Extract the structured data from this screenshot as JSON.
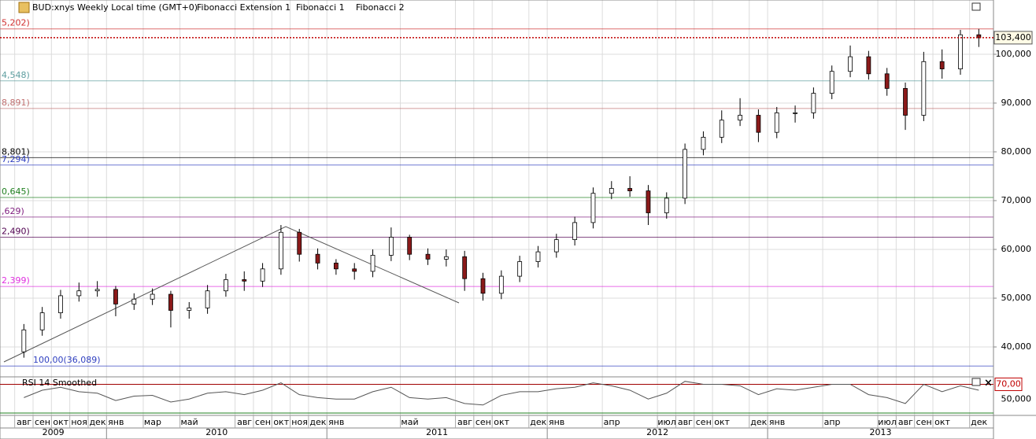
{
  "chart_data": {
    "type": "candlestick",
    "title": "BUD:xnys Weekly Local time (GMT+0)",
    "toolbar": [
      "Fibonacci Extension 1",
      "Fibonacci 1",
      "Fibonacci 2"
    ],
    "x": [
      1.5,
      2.5,
      3.5,
      4.5,
      5.5,
      6.5,
      7.5,
      8.5,
      9.5,
      10.5,
      11.5,
      12.5,
      13.5,
      14.5,
      15.5,
      16.5,
      17.5,
      18.5,
      19.5,
      20.5,
      21.5,
      22.5,
      23.5,
      24.5,
      25.5,
      26.5,
      27.5,
      28.5,
      29.5,
      30.5,
      31.5,
      32.5,
      33.5,
      34.5,
      35.5,
      36.5,
      37.5,
      38.5,
      39.5,
      40.5,
      41.5,
      42.5,
      43.5,
      44.5,
      45.5,
      46.5,
      47.5,
      48.5,
      49.5,
      50.5,
      51.5,
      52.5,
      53.5
    ],
    "open": [
      39000,
      43500,
      47000,
      50500,
      51500,
      51800,
      48800,
      49800,
      50800,
      47500,
      48000,
      51500,
      53800,
      53500,
      56000,
      63500,
      59000,
      57200,
      56000,
      55500,
      58800,
      62500,
      59000,
      58000,
      58500,
      54000,
      51000,
      54500,
      57500,
      59500,
      62000,
      65500,
      71500,
      72500,
      72000,
      67500,
      70500,
      80500,
      83000,
      86500,
      87500,
      84000,
      88000,
      88000,
      92000,
      96500,
      99500,
      96000,
      93000,
      87500,
      98500,
      97000,
      104000
    ],
    "high": [
      44700,
      48200,
      51700,
      53200,
      53500,
      52500,
      51000,
      52000,
      51500,
      49200,
      52700,
      55000,
      55500,
      57200,
      65000,
      64200,
      60200,
      58000,
      57200,
      60000,
      64500,
      63000,
      60200,
      60000,
      59700,
      55200,
      55700,
      58700,
      60700,
      63200,
      66700,
      72700,
      74000,
      75000,
      73200,
      71700,
      81700,
      84200,
      88500,
      91000,
      88700,
      89200,
      89500,
      93200,
      97700,
      101800,
      100700,
      97200,
      94200,
      100500,
      101000,
      105000,
      105200
    ],
    "low": [
      37800,
      42300,
      45800,
      49300,
      50300,
      46300,
      47600,
      48600,
      44000,
      45800,
      46800,
      50300,
      51500,
      52300,
      54800,
      57500,
      55900,
      54800,
      53800,
      54300,
      57600,
      57800,
      56800,
      56500,
      51500,
      49500,
      49800,
      53300,
      56300,
      58300,
      60800,
      64300,
      70300,
      70800,
      65000,
      66300,
      69300,
      79300,
      81800,
      85300,
      82000,
      82800,
      86000,
      86800,
      90800,
      95300,
      94800,
      91500,
      84500,
      86300,
      95000,
      95800,
      101500
    ],
    "close": [
      43500,
      47000,
      50500,
      51500,
      51800,
      48800,
      49800,
      50800,
      47500,
      48000,
      51500,
      53800,
      53500,
      56000,
      63500,
      59000,
      57200,
      56000,
      55500,
      58800,
      62500,
      59000,
      58000,
      58500,
      54000,
      51000,
      54500,
      57500,
      59500,
      62000,
      65500,
      71500,
      72500,
      72000,
      67500,
      70500,
      80500,
      83000,
      86500,
      87500,
      84000,
      88000,
      88000,
      92000,
      96500,
      99500,
      96000,
      93000,
      87500,
      98500,
      97000,
      104000,
      103400
    ],
    "up_color": "#ffffff",
    "down_color": "#8b1a1a",
    "xlim": [
      0.2,
      54.3
    ],
    "ylim": [
      34032,
      111129
    ],
    "yticks": [
      {
        "value": 40000,
        "label": "40,000"
      },
      {
        "value": 50000,
        "label": "50,000"
      },
      {
        "value": 60000,
        "label": "60,000"
      },
      {
        "value": 70000,
        "label": "70,000"
      },
      {
        "value": 80000,
        "label": "80,000"
      },
      {
        "value": 90000,
        "label": "90,000"
      },
      {
        "value": 100000,
        "label": "100,000"
      }
    ],
    "xticks": [
      {
        "value": 1,
        "label": "авг"
      },
      {
        "value": 2,
        "label": "сен"
      },
      {
        "value": 3,
        "label": "окт"
      },
      {
        "value": 4,
        "label": "ноя"
      },
      {
        "value": 5,
        "label": "дек"
      },
      {
        "value": 6,
        "label": "янв"
      },
      {
        "value": 8,
        "label": "мар"
      },
      {
        "value": 10,
        "label": "май"
      },
      {
        "value": 13,
        "label": "авг"
      },
      {
        "value": 14,
        "label": "сен"
      },
      {
        "value": 15,
        "label": "окт"
      },
      {
        "value": 16,
        "label": "ноя"
      },
      {
        "value": 17,
        "label": "дек"
      },
      {
        "value": 18,
        "label": "янв"
      },
      {
        "value": 22,
        "label": "май"
      },
      {
        "value": 25,
        "label": "авг"
      },
      {
        "value": 26,
        "label": "сен"
      },
      {
        "value": 27,
        "label": "окт"
      },
      {
        "value": 29,
        "label": "дек"
      },
      {
        "value": 30,
        "label": "янв"
      },
      {
        "value": 33,
        "label": "апр"
      },
      {
        "value": 36,
        "label": "июл"
      },
      {
        "value": 37,
        "label": "авг"
      },
      {
        "value": 38,
        "label": "сен"
      },
      {
        "value": 39,
        "label": "окт"
      },
      {
        "value": 41,
        "label": "дек"
      },
      {
        "value": 42,
        "label": "янв"
      },
      {
        "value": 45,
        "label": "апр"
      },
      {
        "value": 48,
        "label": "июл"
      },
      {
        "value": 49,
        "label": "авг"
      },
      {
        "value": 50,
        "label": "сен"
      },
      {
        "value": 51,
        "label": "окт"
      },
      {
        "value": 53,
        "label": "дек"
      }
    ],
    "years": [
      2009,
      2010,
      2011,
      2012,
      2013
    ],
    "grid": true,
    "last_price": {
      "value": 103400,
      "label": "103,400"
    },
    "fib_levels": [
      {
        "value": 105202,
        "label": "5,202)",
        "color": "#d03030"
      },
      {
        "value": 94548,
        "label": "4,548)",
        "color": "#5f9ea0"
      },
      {
        "value": 88891,
        "label": "8,891)",
        "color": "#c07070"
      },
      {
        "value": 78801,
        "label": "8,801)",
        "color": "#000000"
      },
      {
        "value": 77294,
        "label": "7,294)",
        "color": "#3040c0"
      },
      {
        "value": 70645,
        "label": "0,645)",
        "color": "#208020"
      },
      {
        "value": 66629,
        "label": ",629)",
        "color": "#802080"
      },
      {
        "value": 62490,
        "label": "2,490)",
        "color": "#500050"
      },
      {
        "value": 52399,
        "label": "2,399)",
        "color": "#e030e0"
      },
      {
        "value": 36089,
        "label": "100,00(36,089)",
        "color": "#3040c0"
      }
    ],
    "rsi": {
      "name": "RSI 14 Smoothed",
      "color": "#555555",
      "values": [
        52,
        62,
        66,
        60,
        58,
        48,
        54,
        55,
        46,
        50,
        58,
        60,
        56,
        62,
        72,
        56,
        52,
        50,
        50,
        60,
        66,
        52,
        50,
        52,
        44,
        42,
        55,
        60,
        60,
        64,
        66,
        72,
        68,
        62,
        50,
        58,
        74,
        70,
        70,
        68,
        56,
        64,
        62,
        66,
        70,
        70,
        56,
        52,
        44,
        70,
        60,
        68,
        62
      ],
      "ylim": [
        29,
        79
      ],
      "yticks": [
        {
          "value": 50,
          "label": "50,000"
        }
      ],
      "level": {
        "value": 70,
        "label": "70,00"
      }
    }
  }
}
